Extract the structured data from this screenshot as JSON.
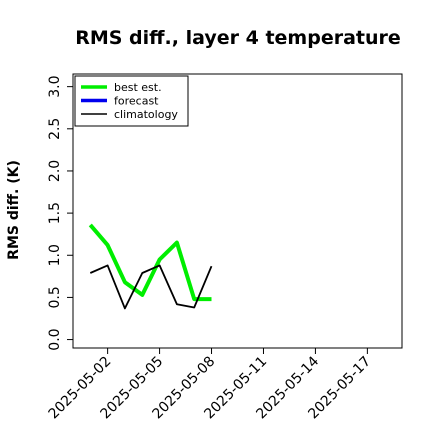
{
  "chart_data": {
    "type": "line",
    "title": "RMS diff., layer 4 temperature",
    "xlabel": "",
    "ylabel": "RMS diff. (K)",
    "xlim": [
      "2025-04-30",
      "2025-05-19"
    ],
    "ylim": [
      -0.1,
      3.15
    ],
    "yticks": [
      0.0,
      0.5,
      1.0,
      1.5,
      2.0,
      2.5,
      3.0
    ],
    "ytick_labels": [
      "0.0",
      "0.5",
      "1.0",
      "1.5",
      "2.0",
      "2.5",
      "3.0"
    ],
    "xticks": [
      "2025-05-02",
      "2025-05-05",
      "2025-05-08",
      "2025-05-11",
      "2025-05-14",
      "2025-05-17"
    ],
    "xtick_labels": [
      "2025-05-02",
      "2025-05-05",
      "2025-05-08",
      "2025-05-11",
      "2025-05-14",
      "2025-05-17"
    ],
    "highlight_xtick": "2025-05-08",
    "highlight_color": "#228B22",
    "grid": false,
    "legend_position": "top-left",
    "series": [
      {
        "name": "best est.",
        "color": "#00ee00",
        "x": [
          "2025-05-01",
          "2025-05-02",
          "2025-05-03",
          "2025-05-04",
          "2025-05-05",
          "2025-05-06",
          "2025-05-07",
          "2025-05-08"
        ],
        "values": [
          1.36,
          1.12,
          0.68,
          0.53,
          0.95,
          1.15,
          0.48,
          0.48
        ]
      },
      {
        "name": "forecast",
        "color": "#0000ee",
        "x": [],
        "values": []
      },
      {
        "name": "climatology",
        "color": "#000000",
        "x": [
          "2025-05-01",
          "2025-05-02",
          "2025-05-03",
          "2025-05-04",
          "2025-05-05",
          "2025-05-06",
          "2025-05-07",
          "2025-05-08"
        ],
        "values": [
          0.79,
          0.88,
          0.37,
          0.79,
          0.88,
          0.42,
          0.38,
          0.87
        ]
      }
    ]
  }
}
